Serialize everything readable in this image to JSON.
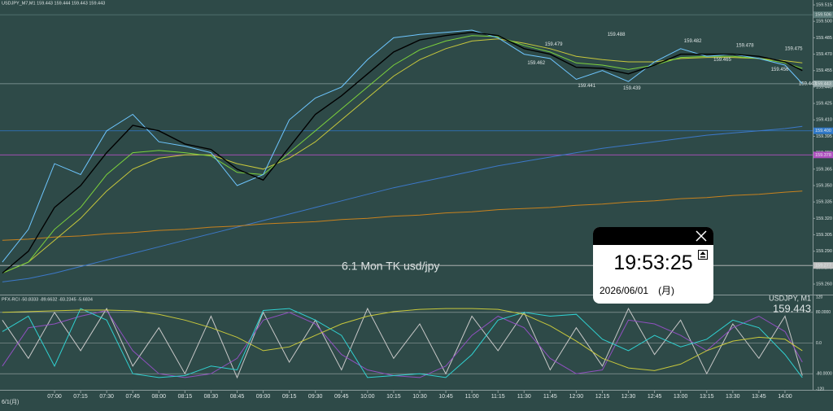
{
  "chart_data": {
    "type": "line",
    "header": "USDJPY_M7,M1  159.443 159.444 159.443 159.443",
    "x": [
      "06:30",
      "06:45",
      "07:00",
      "07:15",
      "07:30",
      "07:45",
      "08:00",
      "08:15",
      "08:30",
      "08:45",
      "09:00",
      "09:15",
      "09:30",
      "09:45",
      "10:00",
      "10:15",
      "10:30",
      "10:45",
      "11:00",
      "11:15",
      "11:30",
      "11:45",
      "12:00",
      "12:15",
      "12:30",
      "12:45",
      "13:00",
      "13:15",
      "13:30",
      "13:45",
      "14:00",
      "14:10"
    ],
    "series": [
      {
        "color": "#3c78c8",
        "values": [
          159.262,
          159.265,
          159.27,
          159.276,
          159.282,
          159.288,
          159.294,
          159.3,
          159.306,
          159.312,
          159.318,
          159.324,
          159.33,
          159.336,
          159.342,
          159.348,
          159.353,
          159.358,
          159.363,
          159.368,
          159.372,
          159.376,
          159.38,
          159.384,
          159.387,
          159.39,
          159.393,
          159.396,
          159.398,
          159.4,
          159.402,
          159.404
        ]
      },
      {
        "color": "#c8821e",
        "values": [
          159.3,
          159.301,
          159.303,
          159.304,
          159.306,
          159.307,
          159.309,
          159.31,
          159.312,
          159.313,
          159.315,
          159.316,
          159.317,
          159.319,
          159.32,
          159.322,
          159.323,
          159.325,
          159.326,
          159.328,
          159.329,
          159.33,
          159.332,
          159.333,
          159.335,
          159.336,
          159.338,
          159.339,
          159.341,
          159.342,
          159.344,
          159.345
        ]
      },
      {
        "color": "#c8c83c",
        "values": [
          159.27,
          159.28,
          159.3,
          159.32,
          159.345,
          159.365,
          159.375,
          159.378,
          159.378,
          159.37,
          159.365,
          159.375,
          159.39,
          159.41,
          159.43,
          159.45,
          159.465,
          159.475,
          159.482,
          159.484,
          159.48,
          159.475,
          159.468,
          159.465,
          159.463,
          159.463,
          159.466,
          159.467,
          159.467,
          159.466,
          159.464,
          159.462
        ]
      },
      {
        "color": "#7cd23c",
        "values": [
          159.27,
          159.28,
          159.31,
          159.33,
          159.36,
          159.38,
          159.382,
          159.38,
          159.377,
          159.362,
          159.36,
          159.38,
          159.4,
          159.42,
          159.44,
          159.46,
          159.474,
          159.482,
          159.487,
          159.486,
          159.478,
          159.472,
          159.462,
          159.46,
          159.456,
          159.46,
          159.467,
          159.468,
          159.468,
          159.466,
          159.462,
          159.457
        ]
      },
      {
        "color": "#6ec6ff",
        "values": [
          159.28,
          159.31,
          159.37,
          159.36,
          159.4,
          159.415,
          159.39,
          159.386,
          159.38,
          159.35,
          159.36,
          159.41,
          159.43,
          159.44,
          159.465,
          159.485,
          159.488,
          159.49,
          159.492,
          159.485,
          159.47,
          159.466,
          159.447,
          159.455,
          159.445,
          159.463,
          159.475,
          159.468,
          159.47,
          159.466,
          159.46,
          159.443
        ]
      },
      {
        "color": "#000000",
        "values": [
          159.27,
          159.29,
          159.33,
          159.35,
          159.38,
          159.405,
          159.4,
          159.388,
          159.383,
          159.365,
          159.355,
          159.385,
          159.415,
          159.432,
          159.452,
          159.472,
          159.483,
          159.487,
          159.49,
          159.487,
          159.475,
          159.47,
          159.458,
          159.457,
          159.452,
          159.46,
          159.47,
          159.47,
          159.47,
          159.468,
          159.463,
          159.455
        ]
      }
    ],
    "ylim": [
      159.25,
      159.52
    ],
    "yticks": [
      159.515,
      {
        "value": 159.5,
        "label": "159.500"
      },
      159.485,
      {
        "value": 159.47,
        "label": "159.470"
      },
      159.455,
      {
        "value": 159.44,
        "label": "159.440"
      },
      159.425,
      {
        "value": 159.41,
        "label": "159.410"
      },
      159.395,
      {
        "value": 159.38,
        "label": "159.380"
      },
      159.365,
      {
        "value": 159.35,
        "label": "159.350"
      },
      159.335,
      {
        "value": 159.32,
        "label": "159.320"
      },
      159.305,
      {
        "value": 159.29,
        "label": "159.290"
      },
      159.275,
      {
        "value": 159.26,
        "label": "159.260"
      }
    ],
    "xticks": [
      "07:00",
      "07:15",
      "07:30",
      "07:45",
      "08:00",
      "08:15",
      "08:30",
      "08:45",
      "09:00",
      "09:15",
      "09:30",
      "09:45",
      "10:00",
      "10:15",
      "10:30",
      "10:45",
      "11:00",
      "11:15",
      "11:30",
      "11:45",
      "12:00",
      "12:15",
      "12:30",
      "12:45",
      "13:00",
      "13:15",
      "13:30",
      "13:45",
      "14:00"
    ],
    "date_label": "6/1(月)",
    "levels": [
      {
        "value": 159.506,
        "color": "#5a7a78"
      },
      {
        "value": 159.443,
        "color": "#8aa0a0"
      },
      {
        "value": 159.4,
        "label": "159.400",
        "color": "#2f78c8"
      },
      {
        "value": 159.378,
        "color": "#b050c0"
      },
      {
        "value": 159.277,
        "color": "#c0c0c0"
      }
    ],
    "annotations": [
      {
        "x": "11:47",
        "value": 159.479
      },
      {
        "x": "12:23",
        "value": 159.488
      },
      {
        "x": "13:07",
        "value": 159.482
      },
      {
        "x": "13:37",
        "value": 159.478
      },
      {
        "x": "14:05",
        "value": 159.475
      },
      {
        "x": "11:37",
        "value": 159.462
      },
      {
        "x": "12:06",
        "value": 159.441
      },
      {
        "x": "12:32",
        "value": 159.439
      },
      {
        "x": "13:24",
        "value": 159.465
      },
      {
        "x": "13:57",
        "value": 159.456
      },
      {
        "x": "14:13",
        "value": 159.443
      }
    ],
    "watermark": "6.1 Mon TK usd/jpy",
    "symbol_label": "USDJPY, M1",
    "last_price": 159.443,
    "indicator": {
      "title": "PFX-RCI -50.8333 -89.6632 -83.2345 -5.6834",
      "ylim": [
        -120,
        120
      ],
      "yticks": [
        120,
        {
          "value": 80,
          "label": "80.0000"
        },
        {
          "value": 0,
          "label": "0.0"
        },
        {
          "value": -80,
          "label": "-80.0000"
        },
        -120
      ],
      "series": [
        {
          "color": "#c8c8c8",
          "values": [
            60,
            -40,
            80,
            -20,
            90,
            -60,
            40,
            -80,
            70,
            -90,
            80,
            -50,
            60,
            -70,
            90,
            -40,
            50,
            -80,
            70,
            -20,
            80,
            -70,
            40,
            -60,
            90,
            -30,
            60,
            -80,
            50,
            -40,
            70,
            -85
          ]
        },
        {
          "color": "#9050c0",
          "values": [
            -60,
            40,
            50,
            70,
            85,
            -20,
            -80,
            -90,
            -80,
            -40,
            60,
            80,
            50,
            -30,
            -70,
            -85,
            -90,
            -60,
            20,
            70,
            40,
            -40,
            -80,
            -70,
            60,
            50,
            20,
            -20,
            40,
            70,
            30,
            -50
          ]
        },
        {
          "color": "#30d0d0",
          "values": [
            30,
            70,
            -60,
            90,
            60,
            -80,
            -90,
            -85,
            -60,
            -70,
            85,
            90,
            60,
            20,
            -90,
            -85,
            -80,
            -90,
            -30,
            60,
            80,
            70,
            75,
            10,
            -20,
            20,
            -10,
            10,
            60,
            40,
            -30,
            -90
          ]
        },
        {
          "color": "#c8c83c",
          "values": [
            80,
            82,
            84,
            86,
            86,
            84,
            75,
            60,
            40,
            15,
            -20,
            -10,
            20,
            50,
            70,
            82,
            88,
            90,
            90,
            88,
            75,
            45,
            5,
            -40,
            -65,
            -72,
            -55,
            -20,
            5,
            15,
            10,
            -20
          ]
        }
      ]
    }
  },
  "clock_widget": {
    "time": "19:53:25",
    "date": "2026/06/01",
    "weekday": "(月)"
  }
}
